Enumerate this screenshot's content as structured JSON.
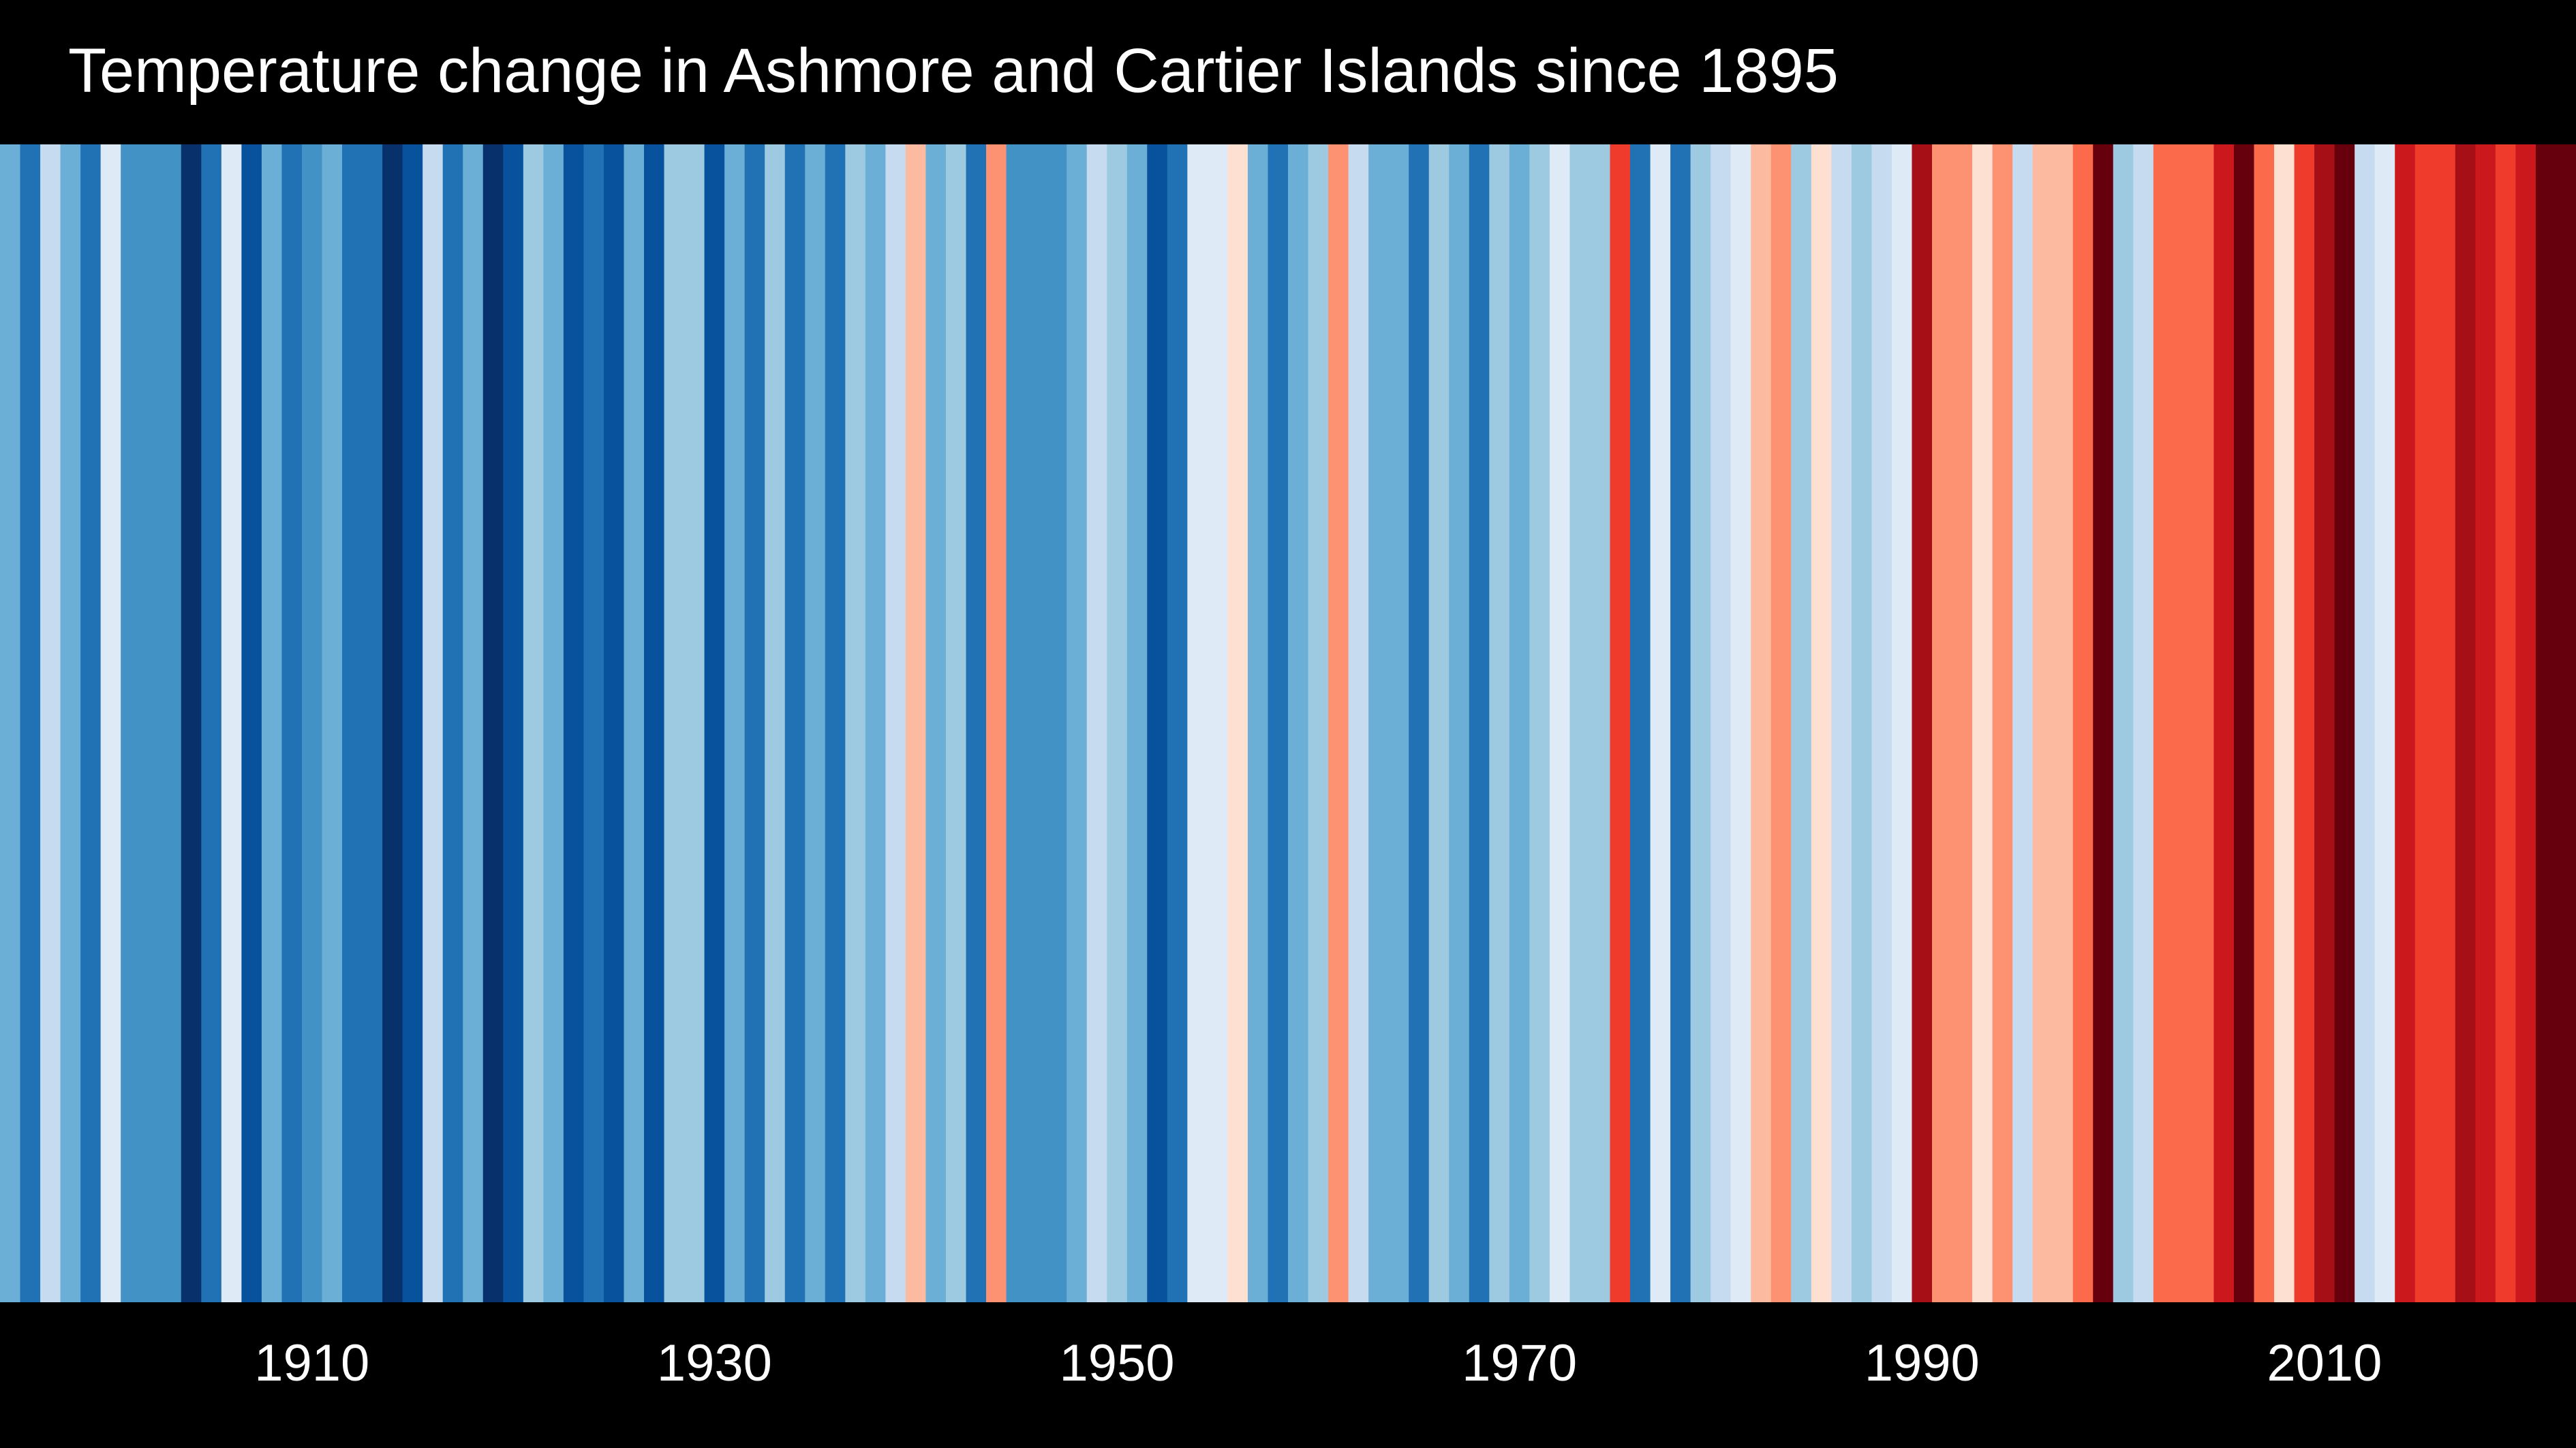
{
  "chart_data": {
    "type": "heatmap",
    "title": "Temperature change in Ashmore and Cartier Islands since 1895",
    "xlabel": "",
    "ylabel": "",
    "x_range": [
      1895,
      2022
    ],
    "x_ticks": [
      1910,
      1930,
      1950,
      1970,
      1990,
      2010
    ],
    "legend": "none",
    "grid": false,
    "palette": {
      "-4": "#08306b",
      "-3": "#08519c",
      "-2": "#2171b5",
      "-1.5": "#4292c6",
      "-1": "#6baed6",
      "-0.5": "#9ecae1",
      "-0.2": "#c6dbef",
      "0": "#deebf7",
      "0.3": "#fee0d2",
      "0.6": "#fcbba1",
      "1": "#fc9272",
      "1.5": "#fb6a4a",
      "2": "#ef3b2c",
      "2.5": "#cb181d",
      "3": "#a50f15",
      "4": "#67000d"
    },
    "years": [
      1895,
      1896,
      1897,
      1898,
      1899,
      1900,
      1901,
      1902,
      1903,
      1904,
      1905,
      1906,
      1907,
      1908,
      1909,
      1910,
      1911,
      1912,
      1913,
      1914,
      1915,
      1916,
      1917,
      1918,
      1919,
      1920,
      1921,
      1922,
      1923,
      1924,
      1925,
      1926,
      1927,
      1928,
      1929,
      1930,
      1931,
      1932,
      1933,
      1934,
      1935,
      1936,
      1937,
      1938,
      1939,
      1940,
      1941,
      1942,
      1943,
      1944,
      1945,
      1946,
      1947,
      1948,
      1949,
      1950,
      1951,
      1952,
      1953,
      1954,
      1955,
      1956,
      1957,
      1958,
      1959,
      1960,
      1961,
      1962,
      1963,
      1964,
      1965,
      1966,
      1967,
      1968,
      1969,
      1970,
      1971,
      1972,
      1973,
      1974,
      1975,
      1976,
      1977,
      1978,
      1979,
      1980,
      1981,
      1982,
      1983,
      1984,
      1985,
      1986,
      1987,
      1988,
      1989,
      1990,
      1991,
      1992,
      1993,
      1994,
      1995,
      1996,
      1997,
      1998,
      1999,
      2000,
      2001,
      2002,
      2003,
      2004,
      2005,
      2006,
      2007,
      2008,
      2009,
      2010,
      2011,
      2012,
      2013,
      2014,
      2015,
      2016,
      2017,
      2018,
      2019,
      2020,
      2021,
      2022
    ],
    "anomalies": [
      -1,
      -2,
      -0.2,
      -1,
      -2,
      0,
      -1.5,
      -1.5,
      -1.5,
      -4,
      -2,
      0,
      -3,
      -1,
      -2,
      -1.5,
      -1,
      -2,
      -2,
      -4,
      -3,
      -0.2,
      -2,
      -1,
      -4,
      -3,
      -0.5,
      -1,
      -3,
      -2,
      -3,
      -1,
      -3,
      -0.5,
      -0.5,
      -3,
      -1,
      -2,
      -0.5,
      -2,
      -1,
      -2,
      -0.5,
      -1,
      -0.2,
      0.6,
      -1,
      -0.5,
      -2,
      1,
      -1.5,
      -1.5,
      -1.5,
      -1,
      -0.2,
      -0.5,
      -1,
      -3,
      -2,
      0,
      0,
      0.3,
      -1,
      -2,
      -1,
      -0.5,
      1,
      -0.2,
      -1,
      -1,
      -2,
      -0.5,
      -1,
      -2,
      -0.5,
      -1,
      -0.5,
      0,
      -0.5,
      -0.5,
      2,
      -2,
      0,
      -2,
      -0.5,
      -0.2,
      0,
      0.6,
      1,
      -0.5,
      0.3,
      -0.2,
      -0.5,
      -0.2,
      0,
      3,
      1,
      1,
      0.3,
      1,
      -0.2,
      0.6,
      0.6,
      1.5,
      4,
      -0.5,
      -0.2,
      1.5,
      1.5,
      1.5,
      2.5,
      4,
      1.5,
      0.3,
      2,
      3,
      4,
      -0.2,
      0,
      2.5,
      2,
      2,
      3,
      2.5,
      2,
      2.5,
      4,
      4
    ]
  }
}
